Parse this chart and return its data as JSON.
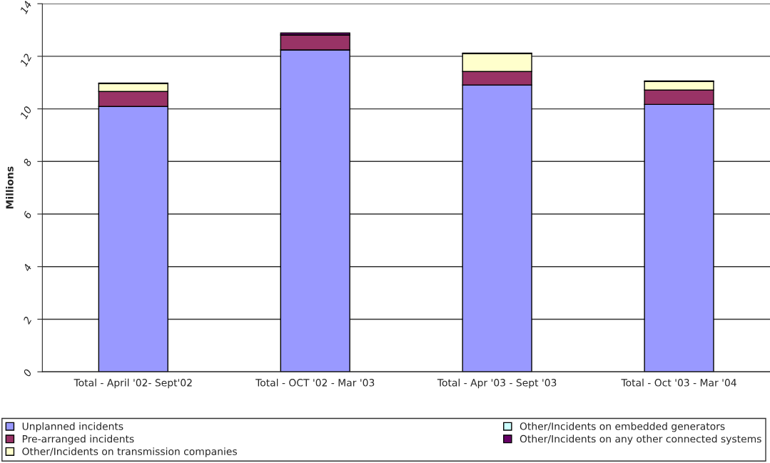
{
  "chart_data": {
    "type": "bar",
    "stacked": true,
    "ylabel": "Millions",
    "categories": [
      "Total - April '02- Sept'02",
      "Total - OCT '02 - Mar '03",
      "Total - Apr '03 - Sept '03",
      "Total - Oct '03 - Mar '04"
    ],
    "series": [
      {
        "name": "Unplanned incidents",
        "color": "#9999ff",
        "values": [
          10.09,
          12.24,
          10.91,
          10.17
        ]
      },
      {
        "name": "Pre-arranged incidents",
        "color": "#993366",
        "values": [
          0.57,
          0.57,
          0.51,
          0.55
        ]
      },
      {
        "name": "Other/Incidents on transmission companies",
        "color": "#ffffcc",
        "values": [
          0.3,
          0,
          0.68,
          0.32
        ]
      },
      {
        "name": "Other/Incidents on embedded generators",
        "color": "#ccffff",
        "values": [
          0,
          0,
          0,
          0
        ]
      },
      {
        "name": "Other/Incidents on any other connected systems",
        "color": "#660066",
        "values": [
          0.02,
          0.08,
          0.02,
          0.02
        ]
      }
    ],
    "ylim": [
      0,
      14
    ],
    "yticks": [
      0,
      2,
      4,
      6,
      8,
      10,
      12,
      14
    ],
    "grid": "y",
    "legend": "bottom"
  }
}
